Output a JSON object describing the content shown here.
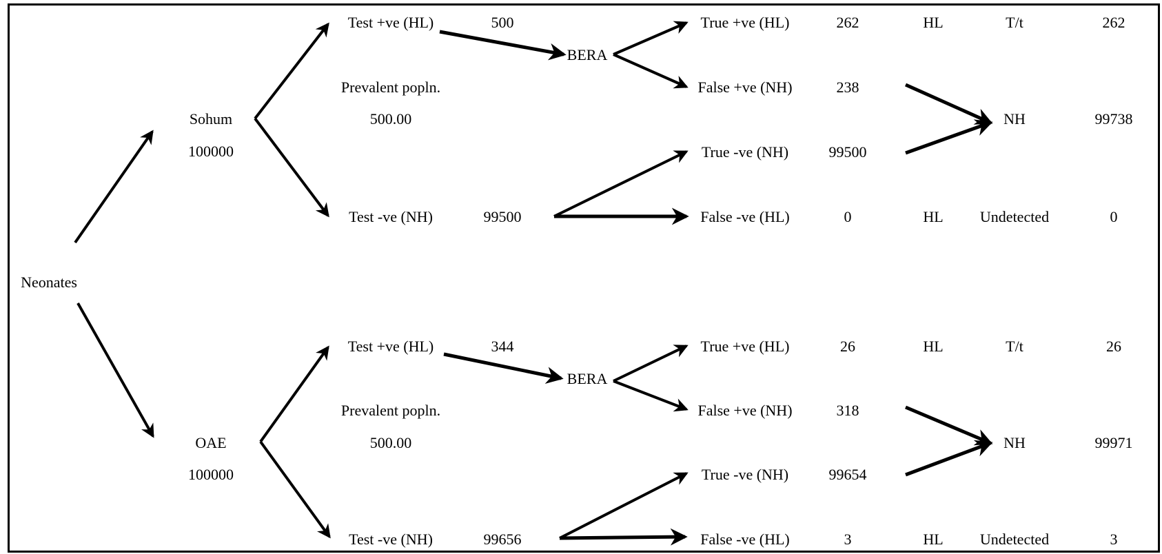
{
  "root": {
    "label": "Neonates"
  },
  "branches": [
    {
      "method": "Sohum",
      "population": "100000",
      "test_pos": {
        "label": "Test +ve (HL)",
        "value": "500"
      },
      "prevalent_label": "Prevalent popln.",
      "prevalent_value": "500.00",
      "test_neg": {
        "label": "Test -ve (NH)",
        "value": "99500"
      },
      "confirm": "BERA",
      "true_pos": {
        "label": "True +ve (HL)",
        "value": "262",
        "status": "HL",
        "action": "T/t",
        "total": "262"
      },
      "false_pos": {
        "label": "False +ve (NH)",
        "value": "238"
      },
      "true_neg": {
        "label": "True -ve (NH)",
        "value": "99500"
      },
      "false_neg": {
        "label": "False -ve (HL)",
        "value": "0",
        "status": "HL",
        "action": "Undetected",
        "total": "0"
      },
      "nh": {
        "label": "NH",
        "total": "99738"
      }
    },
    {
      "method": "OAE",
      "population": "100000",
      "test_pos": {
        "label": "Test +ve (HL)",
        "value": "344"
      },
      "prevalent_label": "Prevalent popln.",
      "prevalent_value": "500.00",
      "test_neg": {
        "label": "Test -ve (NH)",
        "value": "99656"
      },
      "confirm": "BERA",
      "true_pos": {
        "label": "True +ve (HL)",
        "value": "26",
        "status": "HL",
        "action": "T/t",
        "total": "26"
      },
      "false_pos": {
        "label": "False +ve (NH)",
        "value": "318"
      },
      "true_neg": {
        "label": "True -ve (NH)",
        "value": "99654"
      },
      "false_neg": {
        "label": "False -ve (HL)",
        "value": "3",
        "status": "HL",
        "action": "Undetected",
        "total": "3"
      },
      "nh": {
        "label": "NH",
        "total": "99971"
      }
    }
  ]
}
